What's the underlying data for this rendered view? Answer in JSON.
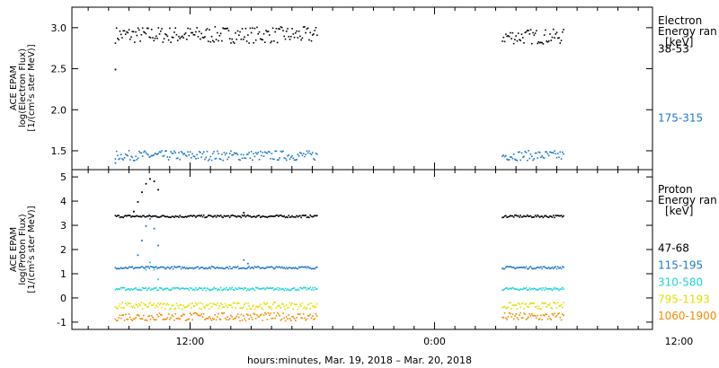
{
  "chart_data": [
    {
      "type": "scatter",
      "panel": "electron",
      "ylabel_lines": [
        "ACE EPAM",
        "log(Electron Flux)",
        "[1/(cm²s ster MeV)]"
      ],
      "ylim": [
        1.27,
        3.25
      ],
      "yticks": [
        1.5,
        2.0,
        2.5,
        3.0
      ],
      "ytick_labels": [
        "1.5",
        "2.0",
        "2.5",
        "3.0"
      ],
      "legend_title": [
        "Electron",
        "Energy ran",
        "[keV]"
      ],
      "series": [
        {
          "name": "38-53",
          "color": "#000000",
          "label_y": 2.74,
          "segments": [
            {
              "x0": 8.3,
              "x1": 18.2,
              "level": 2.92,
              "spread": 0.1
            },
            {
              "x0": 27.3,
              "x1": 30.3,
              "level": 2.9,
              "spread": 0.09
            }
          ],
          "extra_points": [
            [
              8.3,
              2.5
            ]
          ]
        },
        {
          "name": "175-315",
          "color": "#1f78c8",
          "label_y": 1.9,
          "segments": [
            {
              "x0": 8.3,
              "x1": 18.2,
              "level": 1.45,
              "spread": 0.06
            },
            {
              "x0": 27.3,
              "x1": 30.3,
              "level": 1.45,
              "spread": 0.06
            }
          ],
          "extra_points": [
            [
              8.3,
              1.36
            ]
          ]
        }
      ]
    },
    {
      "type": "scatter",
      "panel": "proton",
      "ylabel_lines": [
        "ACE EPAM",
        "log(Proton Flux)",
        "[1/(cm²s ster MeV)]"
      ],
      "ylim": [
        -1.3,
        5.3
      ],
      "yticks": [
        -1,
        0,
        1,
        2,
        3,
        4,
        5
      ],
      "ytick_labels": [
        "-1",
        "0",
        "1",
        "2",
        "3",
        "4",
        "5"
      ],
      "legend_title": [
        "Proton",
        "Energy ran",
        "[keV]"
      ],
      "series": [
        {
          "name": "47-68",
          "color": "#000000",
          "label_y": 2.05,
          "segments": [
            {
              "x0": 8.3,
              "x1": 18.2,
              "level": 3.4,
              "spread": 0.05
            },
            {
              "x0": 27.3,
              "x1": 30.3,
              "level": 3.4,
              "spread": 0.05
            }
          ],
          "extra_points": [
            [
              9.2,
              3.6
            ],
            [
              9.4,
              4.0
            ],
            [
              9.6,
              4.4
            ],
            [
              9.8,
              4.75
            ],
            [
              10.0,
              4.95
            ],
            [
              10.2,
              4.85
            ],
            [
              10.4,
              4.5
            ],
            [
              14.6,
              3.55
            ]
          ]
        },
        {
          "name": "115-195",
          "color": "#1f78c8",
          "label_y": 1.35,
          "segments": [
            {
              "x0": 8.3,
              "x1": 18.2,
              "level": 1.28,
              "spread": 0.05
            },
            {
              "x0": 27.3,
              "x1": 30.3,
              "level": 1.28,
              "spread": 0.05
            }
          ],
          "extra_points": [
            [
              9.4,
              1.8
            ],
            [
              9.6,
              2.4
            ],
            [
              9.8,
              3.0
            ],
            [
              10.0,
              3.3
            ],
            [
              10.2,
              2.9
            ],
            [
              10.4,
              2.2
            ],
            [
              14.6,
              1.6
            ],
            [
              14.8,
              1.45
            ]
          ]
        },
        {
          "name": "310-580",
          "color": "#22d3d3",
          "label_y": 0.65,
          "segments": [
            {
              "x0": 8.3,
              "x1": 18.2,
              "level": 0.4,
              "spread": 0.06
            },
            {
              "x0": 27.3,
              "x1": 30.3,
              "level": 0.4,
              "spread": 0.06
            }
          ],
          "extra_points": [
            [
              9.8,
              1.2
            ],
            [
              10.0,
              1.5
            ],
            [
              10.2,
              1.2
            ],
            [
              10.4,
              0.8
            ]
          ]
        },
        {
          "name": "795-1193",
          "color": "#e0e000",
          "label_y": -0.05,
          "segments": [
            {
              "x0": 8.3,
              "x1": 18.2,
              "level": -0.3,
              "spread": 0.14
            },
            {
              "x0": 27.3,
              "x1": 30.3,
              "level": -0.3,
              "spread": 0.14
            }
          ],
          "extra_points": []
        },
        {
          "name": "1060-1900",
          "color": "#f08c00",
          "label_y": -0.75,
          "segments": [
            {
              "x0": 8.3,
              "x1": 18.2,
              "level": -0.75,
              "spread": 0.17
            },
            {
              "x0": 27.3,
              "x1": 30.3,
              "level": -0.75,
              "spread": 0.17
            }
          ],
          "extra_points": []
        }
      ]
    }
  ],
  "x_axis": {
    "xlim": [
      6.2,
      34.7
    ],
    "major_ticks": [
      12,
      24,
      36
    ],
    "tick_labels": [
      "12:00",
      "0:00",
      "12:00"
    ],
    "minor_step": 1,
    "xlabel": "hours:minutes, Mar. 19, 2018 – Mar. 20, 2018"
  }
}
